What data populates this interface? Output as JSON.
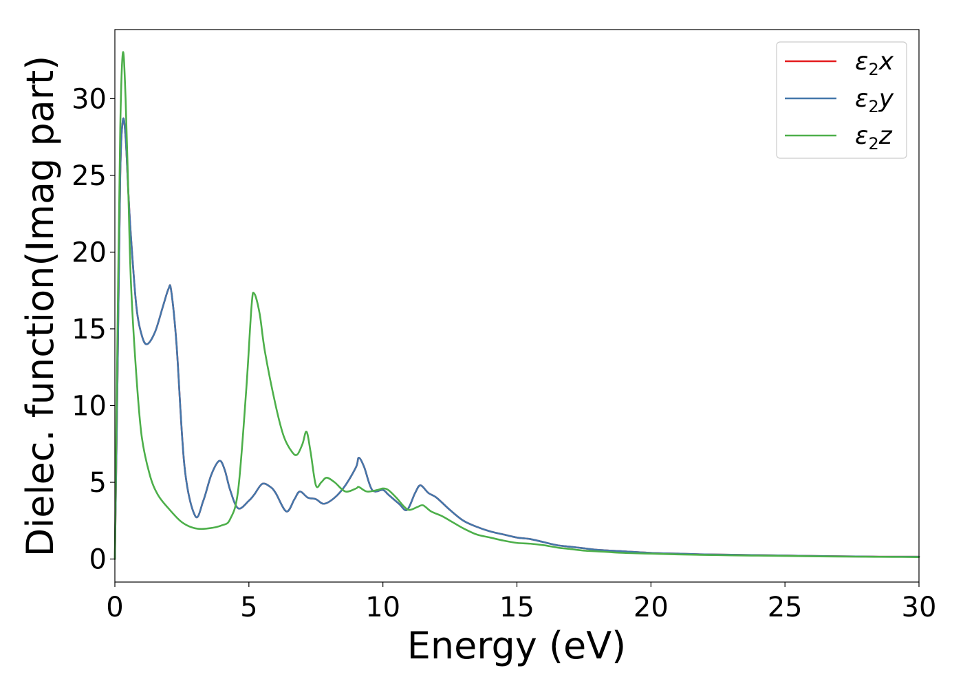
{
  "chart_data": {
    "type": "line",
    "xlabel": "Energy (eV)",
    "ylabel": "Dielec. function(Imag part)",
    "xlim": [
      0,
      30
    ],
    "ylim": [
      -1.5,
      34.5
    ],
    "xticks": [
      0,
      5,
      10,
      15,
      20,
      25,
      30
    ],
    "yticks": [
      0,
      5,
      10,
      15,
      20,
      25,
      30
    ],
    "grid": false,
    "legend_position": "top-right",
    "series": [
      {
        "name": "ε2x",
        "legend_base": "ε",
        "legend_sub": "2",
        "legend_suffix": "x",
        "color": "#e41a1c",
        "x": [
          0,
          0.1,
          0.2,
          0.3,
          0.4,
          0.5,
          0.6,
          0.8,
          1.0,
          1.2,
          1.5,
          1.8,
          2.0,
          2.1,
          2.3,
          2.6,
          3.0,
          3.3,
          3.6,
          3.9,
          4.1,
          4.3,
          4.6,
          5.0,
          5.2,
          5.5,
          5.8,
          6.0,
          6.4,
          6.7,
          6.9,
          7.2,
          7.5,
          7.8,
          8.2,
          8.6,
          9.0,
          9.1,
          9.3,
          9.6,
          10.0,
          10.2,
          10.6,
          10.9,
          11.2,
          11.4,
          11.7,
          12.0,
          12.5,
          13.0,
          13.5,
          14.0,
          14.5,
          15.0,
          15.5,
          16.0,
          16.5,
          17.0,
          17.5,
          18.0,
          19.0,
          20.0,
          21.0,
          22.0,
          23.0,
          24.0,
          25.0,
          26.0,
          27.0,
          28.0,
          29.0,
          30.0
        ],
        "y": [
          0,
          12,
          25,
          28.6,
          27.5,
          24,
          21,
          16.5,
          14.6,
          14.0,
          14.8,
          16.5,
          17.6,
          17.5,
          14,
          6,
          2.8,
          3.8,
          5.5,
          6.4,
          5.8,
          4.5,
          3.3,
          3.8,
          4.2,
          4.9,
          4.7,
          4.3,
          3.1,
          3.9,
          4.4,
          4.0,
          3.9,
          3.6,
          4.0,
          4.8,
          6.0,
          6.6,
          6.0,
          4.5,
          4.5,
          4.2,
          3.6,
          3.2,
          4.3,
          4.8,
          4.3,
          4.0,
          3.2,
          2.5,
          2.1,
          1.8,
          1.6,
          1.4,
          1.3,
          1.1,
          0.9,
          0.8,
          0.7,
          0.6,
          0.5,
          0.4,
          0.35,
          0.3,
          0.28,
          0.25,
          0.23,
          0.2,
          0.18,
          0.16,
          0.15,
          0.15
        ]
      },
      {
        "name": "ε2y",
        "legend_base": "ε",
        "legend_sub": "2",
        "legend_suffix": "y",
        "color": "#4477aa",
        "x": [
          0,
          0.1,
          0.2,
          0.3,
          0.4,
          0.5,
          0.6,
          0.8,
          1.0,
          1.2,
          1.5,
          1.8,
          2.0,
          2.1,
          2.3,
          2.6,
          3.0,
          3.3,
          3.6,
          3.9,
          4.1,
          4.3,
          4.6,
          5.0,
          5.2,
          5.5,
          5.8,
          6.0,
          6.4,
          6.7,
          6.9,
          7.2,
          7.5,
          7.8,
          8.2,
          8.6,
          9.0,
          9.1,
          9.3,
          9.6,
          10.0,
          10.2,
          10.6,
          10.9,
          11.2,
          11.4,
          11.7,
          12.0,
          12.5,
          13.0,
          13.5,
          14.0,
          14.5,
          15.0,
          15.5,
          16.0,
          16.5,
          17.0,
          17.5,
          18.0,
          19.0,
          20.0,
          21.0,
          22.0,
          23.0,
          24.0,
          25.0,
          26.0,
          27.0,
          28.0,
          29.0,
          30.0
        ],
        "y": [
          0,
          12,
          25,
          28.6,
          27.5,
          24,
          21,
          16.5,
          14.6,
          14.0,
          14.8,
          16.5,
          17.6,
          17.5,
          14,
          6,
          2.8,
          3.8,
          5.5,
          6.4,
          5.8,
          4.5,
          3.3,
          3.8,
          4.2,
          4.9,
          4.7,
          4.3,
          3.1,
          3.9,
          4.4,
          4.0,
          3.9,
          3.6,
          4.0,
          4.8,
          6.0,
          6.6,
          6.0,
          4.5,
          4.5,
          4.2,
          3.6,
          3.2,
          4.3,
          4.8,
          4.3,
          4.0,
          3.2,
          2.5,
          2.1,
          1.8,
          1.6,
          1.4,
          1.3,
          1.1,
          0.9,
          0.8,
          0.7,
          0.6,
          0.5,
          0.4,
          0.35,
          0.3,
          0.28,
          0.25,
          0.23,
          0.2,
          0.18,
          0.16,
          0.15,
          0.15
        ]
      },
      {
        "name": "ε2z",
        "legend_base": "ε",
        "legend_sub": "2",
        "legend_suffix": "z",
        "color": "#4daf4a",
        "x": [
          0,
          0.1,
          0.2,
          0.3,
          0.4,
          0.5,
          0.6,
          0.8,
          1.0,
          1.3,
          1.6,
          2.0,
          2.5,
          3.0,
          3.5,
          4.0,
          4.3,
          4.6,
          4.9,
          5.1,
          5.2,
          5.4,
          5.6,
          6.0,
          6.3,
          6.6,
          6.8,
          7.0,
          7.15,
          7.3,
          7.5,
          7.7,
          7.9,
          8.2,
          8.6,
          9.0,
          9.1,
          9.4,
          9.8,
          10.0,
          10.2,
          10.5,
          10.8,
          11.0,
          11.3,
          11.5,
          11.8,
          12.2,
          12.6,
          13.0,
          13.5,
          14.0,
          14.5,
          15.0,
          15.5,
          16.0,
          16.5,
          17.0,
          17.5,
          18.0,
          19.0,
          20.0,
          21.0,
          22.0,
          23.0,
          24.0,
          25.0,
          26.0,
          27.0,
          28.0,
          29.0,
          30.0
        ],
        "y": [
          0,
          15,
          28,
          33.0,
          30,
          24,
          18,
          12,
          8,
          5.5,
          4.2,
          3.3,
          2.4,
          2.0,
          2.0,
          2.2,
          2.6,
          4.5,
          11,
          16.5,
          17.3,
          16.0,
          13.5,
          10.0,
          8.0,
          7.0,
          6.8,
          7.5,
          8.3,
          7.0,
          4.8,
          5.0,
          5.3,
          5.0,
          4.4,
          4.6,
          4.7,
          4.4,
          4.5,
          4.6,
          4.5,
          4.0,
          3.4,
          3.2,
          3.4,
          3.5,
          3.1,
          2.8,
          2.4,
          2.0,
          1.6,
          1.4,
          1.2,
          1.05,
          1.0,
          0.9,
          0.75,
          0.65,
          0.55,
          0.5,
          0.4,
          0.35,
          0.3,
          0.27,
          0.24,
          0.22,
          0.2,
          0.18,
          0.16,
          0.15,
          0.14,
          0.13
        ]
      }
    ]
  }
}
